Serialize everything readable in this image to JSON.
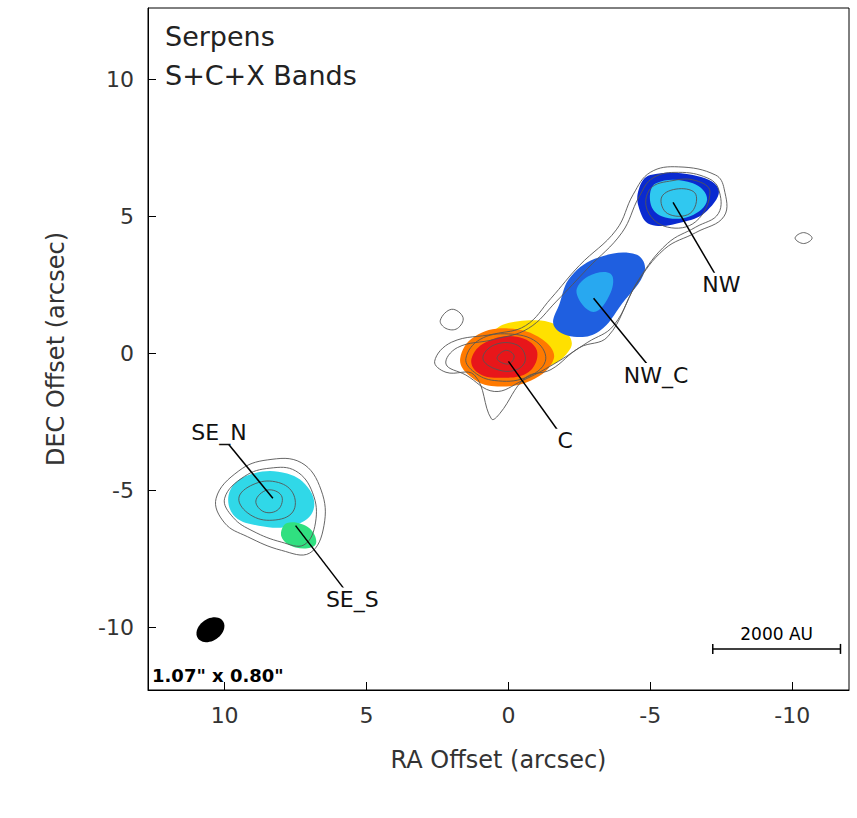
{
  "chart_data": {
    "type": "map",
    "title": "Serpens",
    "subtitle": "S+C+X Bands",
    "x_label": "RA Offset (arcsec)",
    "y_label": "DEC Offset (arcsec)",
    "xlim": [
      12.7,
      -12
    ],
    "xticks": [
      10,
      5,
      0,
      -5,
      -10
    ],
    "ylim": [
      -12.3,
      12.6
    ],
    "yticks": [
      -10,
      -5,
      0,
      5,
      10
    ],
    "emission": [
      {
        "color": "#ffe000",
        "points": [
          [
            0.5,
            0.8
          ],
          [
            -1,
            1.2
          ],
          [
            -2,
            0.8
          ],
          [
            -2.2,
            0.2
          ],
          [
            -1.3,
            -0.5
          ],
          [
            0,
            -0.3
          ]
        ]
      },
      {
        "color": "#ff7a00",
        "points": [
          [
            1.7,
            -0.2
          ],
          [
            1.2,
            0.6
          ],
          [
            0,
            0.9
          ],
          [
            -1.2,
            0.5
          ],
          [
            -1.6,
            -0.2
          ],
          [
            -0.8,
            -1.0
          ],
          [
            0.6,
            -1.2
          ],
          [
            1.4,
            -0.8
          ]
        ]
      },
      {
        "color": "#e8161a",
        "points": [
          [
            1.3,
            -0.2
          ],
          [
            0.8,
            0.4
          ],
          [
            -0.3,
            0.6
          ],
          [
            -1.0,
            0.1
          ],
          [
            -0.7,
            -0.7
          ],
          [
            0.4,
            -0.9
          ],
          [
            1.1,
            -0.7
          ]
        ]
      },
      {
        "color": "#1f5fe0",
        "points": [
          [
            -1.8,
            1.8
          ],
          [
            -2.2,
            2.8
          ],
          [
            -3.2,
            3.5
          ],
          [
            -4.5,
            3.6
          ],
          [
            -4.8,
            3.0
          ],
          [
            -4.0,
            1.8
          ],
          [
            -3.2,
            0.8
          ],
          [
            -2.3,
            0.6
          ],
          [
            -1.6,
            1.0
          ]
        ]
      },
      {
        "color": "#28a8f0",
        "points": [
          [
            -2.4,
            2.2
          ],
          [
            -2.8,
            2.8
          ],
          [
            -3.6,
            2.9
          ],
          [
            -3.6,
            2.2
          ],
          [
            -3.0,
            1.5
          ]
        ]
      },
      {
        "color": "#0a2ad0",
        "points": [
          [
            -4.6,
            6.0
          ],
          [
            -5.0,
            6.5
          ],
          [
            -6.5,
            6.5
          ],
          [
            -7.4,
            6.0
          ],
          [
            -7.0,
            5.2
          ],
          [
            -6.2,
            4.8
          ],
          [
            -5.0,
            4.7
          ],
          [
            -4.6,
            5.3
          ]
        ]
      },
      {
        "color": "#30c8f0",
        "points": [
          [
            -5.2,
            6.2
          ],
          [
            -6.5,
            6.2
          ],
          [
            -7.0,
            5.6
          ],
          [
            -6.4,
            5.0
          ],
          [
            -5.4,
            5.0
          ],
          [
            -5.0,
            5.5
          ]
        ]
      },
      {
        "color": "#30d8e8",
        "points": [
          [
            9.8,
            -5.0
          ],
          [
            9.0,
            -4.4
          ],
          [
            7.8,
            -4.4
          ],
          [
            7.0,
            -5.0
          ],
          [
            6.9,
            -5.8
          ],
          [
            7.6,
            -6.3
          ],
          [
            8.8,
            -6.3
          ],
          [
            9.7,
            -5.9
          ]
        ]
      },
      {
        "color": "#30e080",
        "points": [
          [
            7.8,
            -6.2
          ],
          [
            7.0,
            -6.4
          ],
          [
            6.8,
            -7.0
          ],
          [
            7.5,
            -7.1
          ],
          [
            8.0,
            -6.7
          ]
        ]
      }
    ],
    "contours": [
      {
        "points": [
          [
            -7.6,
            6.0
          ],
          [
            -7.3,
            6.5
          ],
          [
            -6.0,
            6.8
          ],
          [
            -5.0,
            6.6
          ],
          [
            -4.4,
            5.8
          ],
          [
            -3.8,
            4.5
          ],
          [
            -2.5,
            3.2
          ],
          [
            -1.5,
            2.0
          ],
          [
            -0.6,
            1.0
          ],
          [
            0.5,
            0.7
          ],
          [
            2.0,
            0.4
          ],
          [
            2.6,
            -0.3
          ],
          [
            2.2,
            -0.7
          ],
          [
            1.2,
            -0.8
          ],
          [
            0.6,
            -2.4
          ],
          [
            0.3,
            -2.2
          ],
          [
            -0.6,
            -0.9
          ],
          [
            -1.5,
            -0.6
          ],
          [
            -2.5,
            0.2
          ],
          [
            -3.5,
            0.6
          ],
          [
            -4.5,
            2.5
          ],
          [
            -5.5,
            3.8
          ],
          [
            -6.6,
            4.4
          ],
          [
            -7.6,
            5.0
          ]
        ]
      },
      {
        "points": [
          [
            -7.4,
            6.0
          ],
          [
            -7.0,
            6.4
          ],
          [
            -6.0,
            6.6
          ],
          [
            -5.1,
            6.4
          ],
          [
            -4.6,
            5.7
          ],
          [
            -4.0,
            4.4
          ],
          [
            -2.8,
            3.1
          ],
          [
            -1.7,
            1.9
          ],
          [
            -0.7,
            0.9
          ],
          [
            0.5,
            0.5
          ],
          [
            1.8,
            0.2
          ],
          [
            2.2,
            -0.4
          ],
          [
            1.5,
            -0.8
          ],
          [
            0.5,
            -1.4
          ],
          [
            -0.5,
            -1.0
          ],
          [
            -1.6,
            -0.4
          ],
          [
            -2.8,
            0.4
          ],
          [
            -3.7,
            1.0
          ],
          [
            -4.6,
            2.7
          ],
          [
            -5.6,
            4.0
          ],
          [
            -6.6,
            4.6
          ],
          [
            -7.4,
            5.1
          ]
        ]
      },
      {
        "points": [
          [
            -7.1,
            5.9
          ],
          [
            -6.6,
            6.3
          ],
          [
            -5.8,
            6.3
          ],
          [
            -5.0,
            6.0
          ],
          [
            -4.9,
            5.2
          ],
          [
            -5.6,
            4.6
          ],
          [
            -6.6,
            4.8
          ]
        ]
      },
      {
        "points": [
          [
            -6.6,
            5.8
          ],
          [
            -6.0,
            6.0
          ],
          [
            -5.4,
            5.7
          ],
          [
            -5.6,
            5.1
          ],
          [
            -6.4,
            5.1
          ]
        ]
      },
      {
        "points": [
          [
            1.5,
            -0.2
          ],
          [
            1.0,
            0.5
          ],
          [
            0,
            0.7
          ],
          [
            -1.0,
            0.4
          ],
          [
            -1.3,
            -0.3
          ],
          [
            -0.6,
            -0.9
          ],
          [
            0.5,
            -1.0
          ],
          [
            1.2,
            -0.7
          ]
        ]
      },
      {
        "points": [
          [
            0.9,
            -0.2
          ],
          [
            0.5,
            0.3
          ],
          [
            -0.3,
            0.3
          ],
          [
            -0.6,
            -0.2
          ],
          [
            -0.3,
            -0.6
          ],
          [
            0.4,
            -0.6
          ]
        ]
      },
      {
        "points": [
          [
            0.4,
            -0.2
          ],
          [
            0.1,
            0.1
          ],
          [
            -0.2,
            -0.1
          ],
          [
            0.0,
            -0.4
          ]
        ]
      },
      {
        "points": [
          [
            10.3,
            -5.3
          ],
          [
            9.5,
            -4.3
          ],
          [
            8.5,
            -3.9
          ],
          [
            7.3,
            -4.0
          ],
          [
            6.6,
            -5.0
          ],
          [
            6.5,
            -6.3
          ],
          [
            7.0,
            -7.3
          ],
          [
            8.0,
            -7.2
          ],
          [
            9.2,
            -6.7
          ],
          [
            10.0,
            -6.2
          ]
        ]
      },
      {
        "points": [
          [
            10.0,
            -5.3
          ],
          [
            9.3,
            -4.5
          ],
          [
            8.4,
            -4.2
          ],
          [
            7.5,
            -4.3
          ],
          [
            6.9,
            -5.1
          ],
          [
            6.8,
            -6.2
          ],
          [
            7.2,
            -7.0
          ],
          [
            8.0,
            -6.9
          ],
          [
            9.0,
            -6.5
          ],
          [
            9.7,
            -6.0
          ]
        ]
      },
      {
        "points": [
          [
            9.5,
            -5.3
          ],
          [
            9.0,
            -4.8
          ],
          [
            8.2,
            -4.7
          ],
          [
            7.6,
            -5.1
          ],
          [
            7.6,
            -5.8
          ],
          [
            8.3,
            -6.1
          ],
          [
            9.1,
            -5.9
          ]
        ]
      },
      {
        "points": [
          [
            8.9,
            -5.4
          ],
          [
            8.5,
            -5.0
          ],
          [
            8.0,
            -5.2
          ],
          [
            8.1,
            -5.7
          ],
          [
            8.6,
            -5.8
          ]
        ]
      },
      {
        "points": [
          [
            2.4,
            1.2
          ],
          [
            2.0,
            1.6
          ],
          [
            1.6,
            1.3
          ],
          [
            1.8,
            0.9
          ],
          [
            2.2,
            0.9
          ]
        ]
      },
      {
        "points": [
          [
            -10.1,
            4.2
          ],
          [
            -10.4,
            4.4
          ],
          [
            -10.7,
            4.2
          ],
          [
            -10.4,
            4.0
          ]
        ]
      }
    ],
    "annotations": [
      {
        "text": "NW",
        "x": -5.8,
        "y": 5.5,
        "text_x": -7.5,
        "text_y": 2.5
      },
      {
        "text": "NW_C",
        "x": -3.0,
        "y": 2.0,
        "text_x": -5.2,
        "text_y": -0.8
      },
      {
        "text": "C",
        "x": 0.0,
        "y": -0.3,
        "text_x": -2.0,
        "text_y": -3.2
      },
      {
        "text": "SE_N",
        "x": 8.3,
        "y": -5.3,
        "text_x": 10.2,
        "text_y": -2.9
      },
      {
        "text": "SE_S",
        "x": 7.5,
        "y": -6.3,
        "text_x": 5.5,
        "text_y": -9.0
      }
    ],
    "beam": {
      "label": "1.07\" x 0.80\"",
      "x": 10.5,
      "y": -10.1,
      "major": 1.07,
      "minor": 0.8
    },
    "scale_bar": {
      "label": "2000 AU",
      "x1": -7.2,
      "x2": -11.7,
      "y": -10.8
    }
  }
}
